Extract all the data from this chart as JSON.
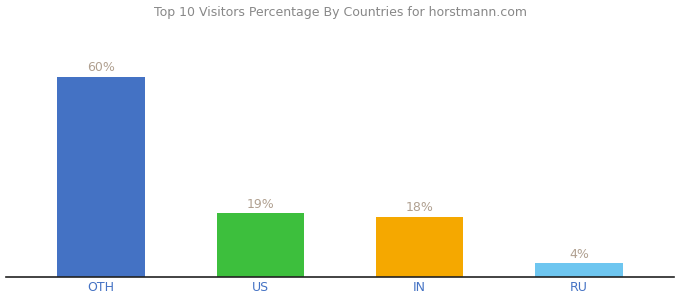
{
  "categories": [
    "OTH",
    "US",
    "IN",
    "RU"
  ],
  "values": [
    60,
    19,
    18,
    4
  ],
  "labels": [
    "60%",
    "19%",
    "18%",
    "4%"
  ],
  "bar_colors": [
    "#4472c4",
    "#3dbf3d",
    "#f5a800",
    "#6ec6f0"
  ],
  "title": "Top 10 Visitors Percentage By Countries for horstmann.com",
  "ylim": [
    0,
    75
  ],
  "background_color": "#ffffff",
  "label_color": "#b0a090",
  "tick_color": "#4472c4",
  "bar_width": 0.55,
  "label_fontsize": 9,
  "tick_fontsize": 9,
  "title_fontsize": 9,
  "title_color": "#888888"
}
